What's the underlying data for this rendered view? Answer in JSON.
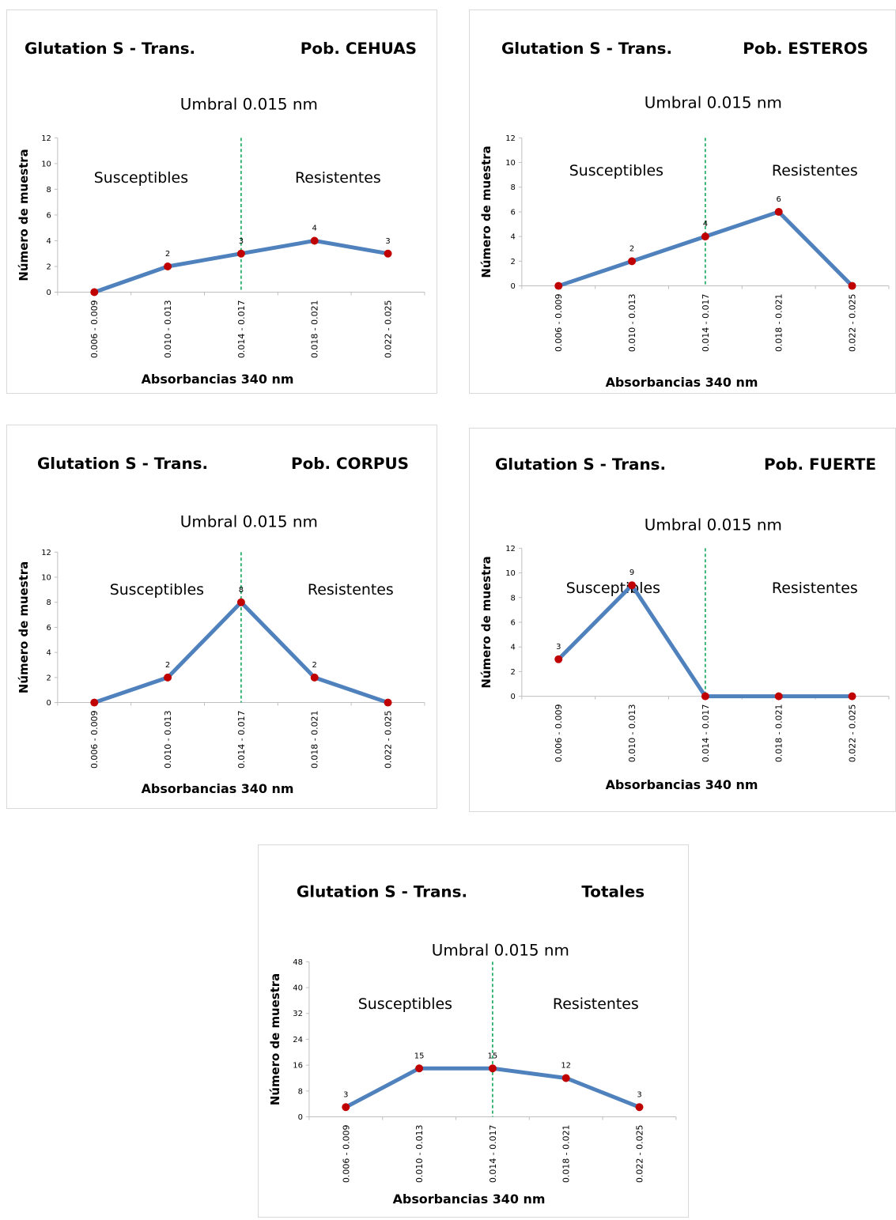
{
  "colors": {
    "line": "#4f81bd",
    "marker": "#c00000",
    "threshold": "#00a050",
    "axis": "#bfbfbf"
  },
  "chart_data": [
    {
      "type": "line",
      "title_left": "Glutation S - Trans.",
      "title_right": "Pob. CEHUAS",
      "subtitle": "Umbral  0.015 nm",
      "ylabel": "Número de muestra",
      "xlabel": "Absorbancias 340 nm",
      "region_left": "Susceptibles",
      "region_right": "Resistentes",
      "categories": [
        "0.006 - 0.009",
        "0.010 - 0.013",
        "0.014 - 0.017",
        "0.018 - 0.021",
        "0.022 - 0.025"
      ],
      "values": [
        0,
        2,
        3,
        4,
        3
      ],
      "data_labels": [
        "",
        "2",
        "3",
        "4",
        "3"
      ],
      "yticks": [
        "0",
        "2",
        "4",
        "6",
        "8",
        "10",
        "12"
      ],
      "ylim": [
        0,
        12
      ],
      "threshold_position": 2
    },
    {
      "type": "line",
      "title_left": "Glutation S - Trans.",
      "title_right": "Pob. ESTEROS",
      "subtitle": "Umbral  0.015 nm",
      "ylabel": "Número de muestra",
      "xlabel": "Absorbancias 340 nm",
      "region_left": "Susceptibles",
      "region_right": "Resistentes",
      "categories": [
        "0.006 - 0.009",
        "0.010 - 0.013",
        "0.014 - 0.017",
        "0.018 - 0.021",
        "0.022 - 0.025"
      ],
      "values": [
        0,
        2,
        4,
        6,
        0
      ],
      "data_labels": [
        "",
        "2",
        "4",
        "6",
        ""
      ],
      "yticks": [
        "0",
        "2",
        "4",
        "6",
        "8",
        "10",
        "12"
      ],
      "ylim": [
        0,
        12
      ],
      "threshold_position": 2
    },
    {
      "type": "line",
      "title_left": "Glutation S - Trans.",
      "title_right": "Pob. CORPUS",
      "subtitle": "Umbral  0.015 nm",
      "ylabel": "Número de muestra",
      "xlabel": "Absorbancias 340 nm",
      "region_left": "Susceptibles",
      "region_right": "Resistentes",
      "categories": [
        "0.006 - 0.009",
        "0.010 - 0.013",
        "0.014 - 0.017",
        "0.018 - 0.021",
        "0.022 - 0.025"
      ],
      "values": [
        0,
        2,
        8,
        2,
        0
      ],
      "data_labels": [
        "",
        "2",
        "8",
        "2",
        ""
      ],
      "yticks": [
        "0",
        "2",
        "4",
        "6",
        "8",
        "10",
        "12"
      ],
      "ylim": [
        0,
        12
      ],
      "threshold_position": 2
    },
    {
      "type": "line",
      "title_left": "Glutation S - Trans.",
      "title_right": "Pob. FUERTE",
      "subtitle": "Umbral  0.015 nm",
      "ylabel": "Número de muestra",
      "xlabel": "Absorbancias 340 nm",
      "region_left": "Susceptibles",
      "region_right": "Resistentes",
      "categories": [
        "0.006 - 0.009",
        "0.010 - 0.013",
        "0.014 - 0.017",
        "0.018 - 0.021",
        "0.022 - 0.025"
      ],
      "values": [
        3,
        9,
        0,
        0,
        0
      ],
      "data_labels": [
        "3",
        "9",
        "",
        "",
        ""
      ],
      "yticks": [
        "0",
        "2",
        "4",
        "6",
        "8",
        "10",
        "12"
      ],
      "ylim": [
        0,
        12
      ],
      "threshold_position": 2
    },
    {
      "type": "line",
      "title_left": "Glutation S - Trans.",
      "title_right": "Totales",
      "subtitle": "Umbral  0.015 nm",
      "ylabel": "Número de muestra",
      "xlabel": "Absorbancias 340 nm",
      "region_left": "Susceptibles",
      "region_right": "Resistentes",
      "categories": [
        "0.006 - 0.009",
        "0.010 - 0.013",
        "0.014 - 0.017",
        "0.018 - 0.021",
        "0.022 - 0.025"
      ],
      "values": [
        3,
        15,
        15,
        12,
        3
      ],
      "data_labels": [
        "3",
        "15",
        "15",
        "12",
        "3"
      ],
      "yticks": [
        "0",
        "8",
        "16",
        "24",
        "32",
        "40",
        "48"
      ],
      "ylim": [
        0,
        48
      ],
      "threshold_position": 2
    }
  ]
}
